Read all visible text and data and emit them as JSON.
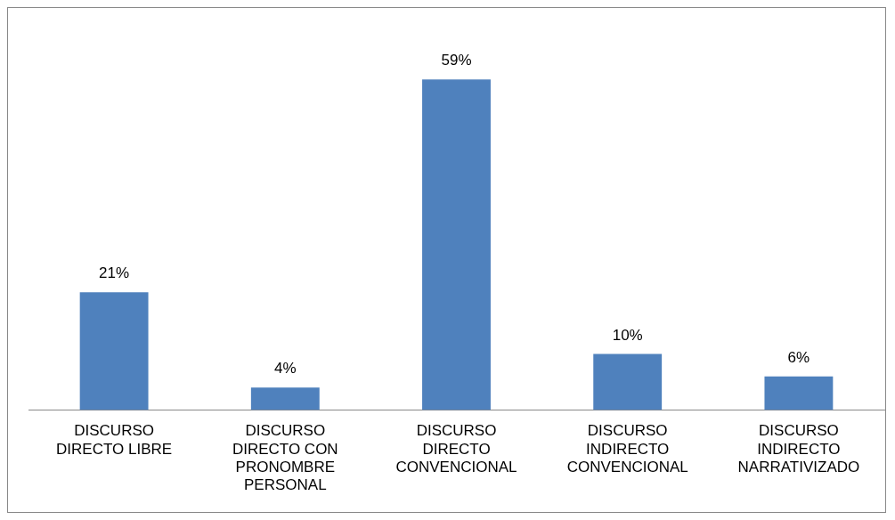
{
  "chart_data": {
    "type": "bar",
    "categories": [
      "DISCURSO DIRECTO LIBRE",
      "DISCURSO DIRECTO CON PRONOMBRE PERSONAL",
      "DISCURSO DIRECTO CONVENCIONAL",
      "DISCURSO INDIRECTO CONVENCIONAL",
      "DISCURSO INDIRECTO NARRATIVIZADO"
    ],
    "values": [
      21,
      4,
      59,
      10,
      6
    ],
    "value_labels": [
      "21%",
      "4%",
      "59%",
      "10%",
      "6%"
    ],
    "color": "#4f81bd",
    "grid": false,
    "legend": false
  }
}
